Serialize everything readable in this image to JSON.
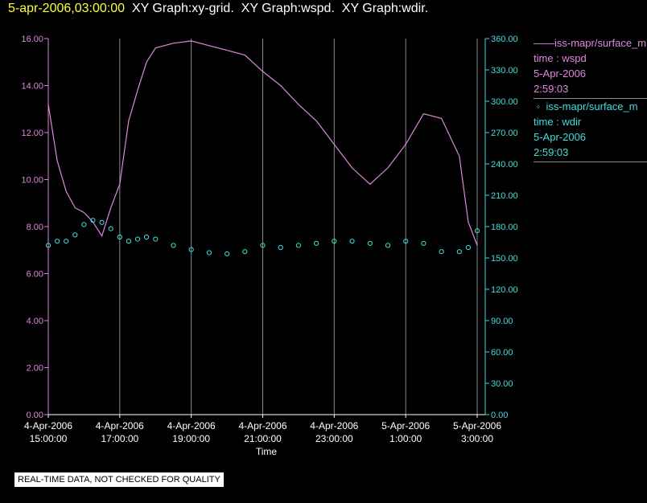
{
  "header": {
    "timestamp": "5-apr-2006,03:00:00",
    "graphs": [
      "XY Graph:xy-grid.",
      "XY Graph:wspd.",
      "XY Graph:wdir."
    ]
  },
  "notice": "REAL-TIME DATA, NOT CHECKED FOR QUALITY",
  "colors": {
    "wspd": "#dd88dd",
    "wdir": "#44dddd",
    "grid": "#888888"
  },
  "legend": [
    {
      "symbol": "line",
      "name": "iss-mapr/surface_m",
      "var": "time : wspd",
      "date": "5-Apr-2006",
      "time": "2:59:03"
    },
    {
      "symbol": "circle",
      "name": "iss-mapr/surface_m",
      "var": "time : wdir",
      "date": "5-Apr-2006",
      "time": "2:59:03"
    }
  ],
  "chart_data": {
    "type": "line",
    "xlabel": "Time",
    "x_range": [
      "2006-04-04T15:00:00",
      "2006-04-05T03:00:00"
    ],
    "x_ticks": [
      {
        "t": "2006-04-04T15:00:00",
        "date": "4-Apr-2006",
        "time": "15:00:00"
      },
      {
        "t": "2006-04-04T17:00:00",
        "date": "4-Apr-2006",
        "time": "17:00:00"
      },
      {
        "t": "2006-04-04T19:00:00",
        "date": "4-Apr-2006",
        "time": "19:00:00"
      },
      {
        "t": "2006-04-04T21:00:00",
        "date": "4-Apr-2006",
        "time": "21:00:00"
      },
      {
        "t": "2006-04-04T23:00:00",
        "date": "4-Apr-2006",
        "time": "23:00:00"
      },
      {
        "t": "2006-04-05T01:00:00",
        "date": "5-Apr-2006",
        "time": "1:00:00"
      },
      {
        "t": "2006-04-05T03:00:00",
        "date": "5-Apr-2006",
        "time": "3:00:00"
      }
    ],
    "y_left": {
      "range": [
        0,
        16
      ],
      "ticks": [
        "0.00",
        "2.00",
        "4.00",
        "6.00",
        "8.00",
        "10.00",
        "12.00",
        "14.00",
        "16.00"
      ]
    },
    "y_right": {
      "range": [
        0,
        360
      ],
      "ticks": [
        "0.00",
        "30.00",
        "60.00",
        "90.00",
        "120.00",
        "150.00",
        "180.00",
        "210.00",
        "240.00",
        "270.00",
        "300.00",
        "330.00",
        "360.00"
      ]
    },
    "grid": "vertical",
    "series": [
      {
        "name": "wspd",
        "axis": "left",
        "style": "line",
        "x": [
          "2006-04-04T15:00:00",
          "2006-04-04T15:15:00",
          "2006-04-04T15:30:00",
          "2006-04-04T15:45:00",
          "2006-04-04T16:00:00",
          "2006-04-04T16:15:00",
          "2006-04-04T16:30:00",
          "2006-04-04T16:45:00",
          "2006-04-04T17:00:00",
          "2006-04-04T17:15:00",
          "2006-04-04T17:30:00",
          "2006-04-04T17:45:00",
          "2006-04-04T18:00:00",
          "2006-04-04T18:30:00",
          "2006-04-04T19:00:00",
          "2006-04-04T19:30:00",
          "2006-04-04T20:00:00",
          "2006-04-04T20:30:00",
          "2006-04-04T21:00:00",
          "2006-04-04T21:30:00",
          "2006-04-04T22:00:00",
          "2006-04-04T22:30:00",
          "2006-04-04T23:00:00",
          "2006-04-04T23:30:00",
          "2006-04-05T00:00:00",
          "2006-04-05T00:30:00",
          "2006-04-05T01:00:00",
          "2006-04-05T01:30:00",
          "2006-04-05T02:00:00",
          "2006-04-05T02:30:00",
          "2006-04-05T02:45:00",
          "2006-04-05T03:00:00"
        ],
        "y": [
          13.2,
          10.8,
          9.5,
          8.8,
          8.6,
          8.2,
          7.6,
          8.8,
          9.8,
          12.5,
          13.8,
          15.0,
          15.6,
          15.8,
          15.9,
          15.7,
          15.5,
          15.3,
          14.6,
          14.0,
          13.2,
          12.5,
          11.5,
          10.5,
          9.8,
          10.5,
          11.5,
          12.8,
          12.6,
          11.0,
          8.2,
          7.2
        ]
      },
      {
        "name": "wdir",
        "axis": "right",
        "style": "scatter",
        "x": [
          "2006-04-04T15:00:00",
          "2006-04-04T15:15:00",
          "2006-04-04T15:30:00",
          "2006-04-04T15:45:00",
          "2006-04-04T16:00:00",
          "2006-04-04T16:15:00",
          "2006-04-04T16:30:00",
          "2006-04-04T16:45:00",
          "2006-04-04T17:00:00",
          "2006-04-04T17:15:00",
          "2006-04-04T17:30:00",
          "2006-04-04T17:45:00",
          "2006-04-04T18:00:00",
          "2006-04-04T18:30:00",
          "2006-04-04T19:00:00",
          "2006-04-04T19:30:00",
          "2006-04-04T20:00:00",
          "2006-04-04T20:30:00",
          "2006-04-04T21:00:00",
          "2006-04-04T21:30:00",
          "2006-04-04T22:00:00",
          "2006-04-04T22:30:00",
          "2006-04-04T23:00:00",
          "2006-04-04T23:30:00",
          "2006-04-05T00:00:00",
          "2006-04-05T00:30:00",
          "2006-04-05T01:00:00",
          "2006-04-05T01:30:00",
          "2006-04-05T02:00:00",
          "2006-04-05T02:30:00",
          "2006-04-05T02:45:00",
          "2006-04-05T03:00:00"
        ],
        "y": [
          162,
          166,
          166,
          172,
          182,
          186,
          184,
          178,
          170,
          166,
          168,
          170,
          168,
          162,
          158,
          155,
          154,
          156,
          162,
          160,
          162,
          164,
          166,
          166,
          164,
          162,
          166,
          164,
          156,
          156,
          160,
          176
        ]
      }
    ]
  }
}
